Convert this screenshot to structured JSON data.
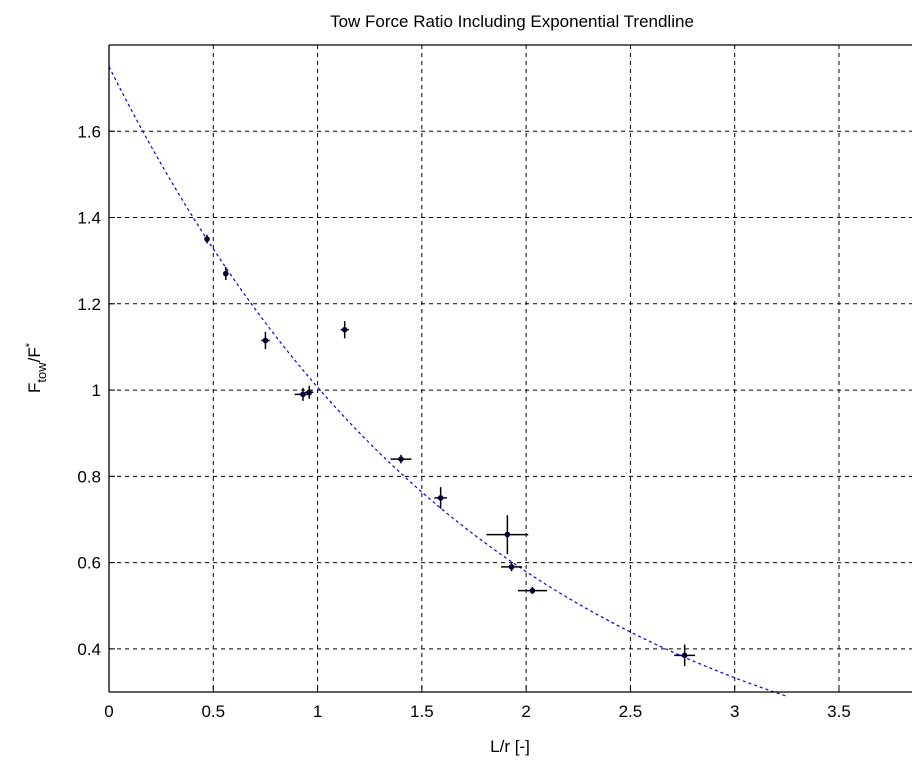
{
  "chart_data": {
    "type": "scatter",
    "title": "Tow Force Ratio Including Exponential Trendline",
    "xlabel": "L/r [-]",
    "ylabel": {
      "main": "F",
      "sub": "tow",
      "sep": "/F",
      "sup": "*"
    },
    "xlim": [
      0,
      3.85
    ],
    "ylim": [
      0.3,
      1.8
    ],
    "xticks": [
      0,
      0.5,
      1,
      1.5,
      2,
      2.5,
      3,
      3.5
    ],
    "xtick_labels": [
      "0",
      "0.5",
      "1",
      "1.5",
      "2",
      "2.5",
      "3",
      "3.5"
    ],
    "yticks": [
      0.4,
      0.6,
      0.8,
      1.0,
      1.2,
      1.4,
      1.6
    ],
    "ytick_labels": [
      "0.4",
      "0.6",
      "0.8",
      "1",
      "1.2",
      "1.4",
      "1.6"
    ],
    "grid": true,
    "series": [
      {
        "kind": "errorbar",
        "color": "#000000",
        "points": [
          {
            "x": 0.47,
            "y": 1.35,
            "xerr": 0.01,
            "yerr": 0.01
          },
          {
            "x": 0.56,
            "y": 1.27,
            "xerr": 0.01,
            "yerr": 0.015
          },
          {
            "x": 0.75,
            "y": 1.115,
            "xerr": 0.02,
            "yerr": 0.02
          },
          {
            "x": 0.93,
            "y": 0.99,
            "xerr": 0.04,
            "yerr": 0.015
          },
          {
            "x": 0.96,
            "y": 0.995,
            "xerr": 0.02,
            "yerr": 0.015
          },
          {
            "x": 1.13,
            "y": 1.14,
            "xerr": 0.02,
            "yerr": 0.02
          },
          {
            "x": 1.4,
            "y": 0.84,
            "xerr": 0.05,
            "yerr": 0.01
          },
          {
            "x": 1.59,
            "y": 0.75,
            "xerr": 0.03,
            "yerr": 0.025
          },
          {
            "x": 1.91,
            "y": 0.665,
            "xerr": 0.1,
            "yerr": 0.045
          },
          {
            "x": 1.93,
            "y": 0.59,
            "xerr": 0.05,
            "yerr": 0.01
          },
          {
            "x": 2.03,
            "y": 0.535,
            "xerr": 0.07,
            "yerr": 0.008
          },
          {
            "x": 2.76,
            "y": 0.385,
            "xerr": 0.05,
            "yerr": 0.025
          }
        ]
      },
      {
        "kind": "trendline",
        "style": "dashed",
        "color": "#0000ff",
        "equation": "y = 1.75 * exp(-0.553 * x)",
        "a": 1.75,
        "b": -0.553,
        "x_range": [
          0,
          3.25
        ]
      }
    ]
  }
}
